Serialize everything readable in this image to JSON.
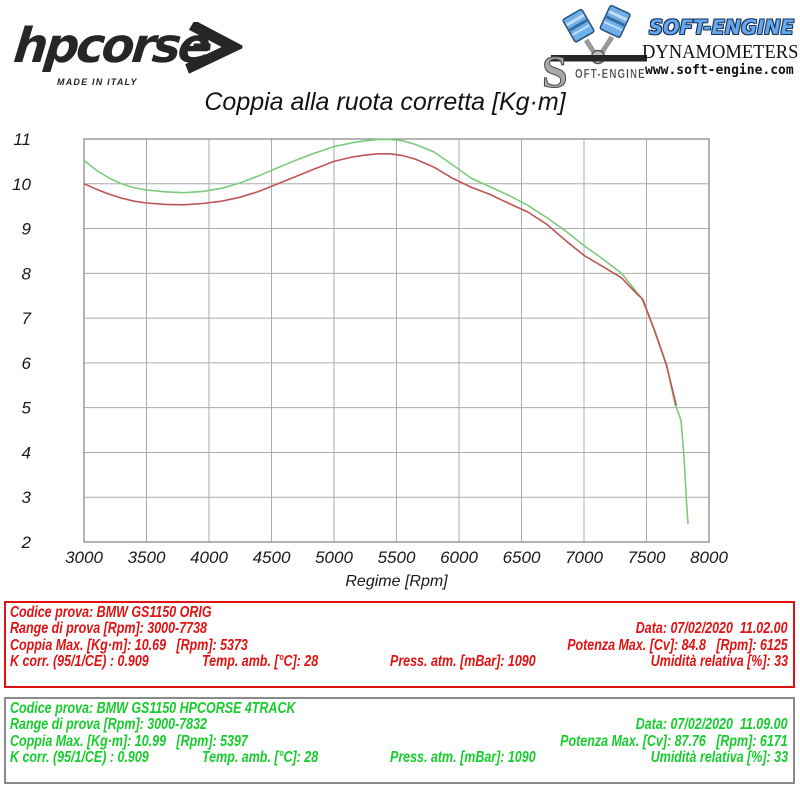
{
  "branding": {
    "hpcorse": {
      "wordmark": "hpcorse",
      "tagline": "MADE IN ITALY"
    },
    "softengine": {
      "name": "SOFT-ENGINE",
      "subtitle": "DYNAMOMETERS",
      "website": "www.soft-engine.com",
      "logo_s_text": "OFT-ENGINE",
      "blue": "#5aa2e8"
    }
  },
  "chart_data": {
    "type": "line",
    "title": "Coppia alla ruota corretta [Kg·m]",
    "xlabel": "Regime [Rpm]",
    "xlim": [
      3000,
      8000
    ],
    "ylim": [
      2,
      11
    ],
    "xticks": [
      3000,
      3500,
      4000,
      4500,
      5000,
      5500,
      6000,
      6500,
      7000,
      7500,
      8000
    ],
    "yticks": [
      2,
      3,
      4,
      5,
      6,
      7,
      8,
      9,
      10,
      11
    ],
    "grid": true,
    "grid_color": "#ababab",
    "frame_color": "#8c8c8c",
    "legend_position": "none",
    "series": [
      {
        "name": "BMW GS1150 ORIG",
        "color": "#bf5454",
        "points": [
          [
            3000,
            10.0
          ],
          [
            3100,
            9.88
          ],
          [
            3200,
            9.77
          ],
          [
            3300,
            9.68
          ],
          [
            3400,
            9.61
          ],
          [
            3500,
            9.57
          ],
          [
            3650,
            9.54
          ],
          [
            3800,
            9.53
          ],
          [
            3950,
            9.56
          ],
          [
            4100,
            9.61
          ],
          [
            4250,
            9.7
          ],
          [
            4400,
            9.83
          ],
          [
            4550,
            10.0
          ],
          [
            4700,
            10.17
          ],
          [
            4850,
            10.34
          ],
          [
            5000,
            10.5
          ],
          [
            5150,
            10.6
          ],
          [
            5250,
            10.64
          ],
          [
            5350,
            10.67
          ],
          [
            5450,
            10.67
          ],
          [
            5550,
            10.63
          ],
          [
            5650,
            10.55
          ],
          [
            5800,
            10.37
          ],
          [
            5950,
            10.12
          ],
          [
            6100,
            9.92
          ],
          [
            6250,
            9.76
          ],
          [
            6400,
            9.56
          ],
          [
            6550,
            9.37
          ],
          [
            6700,
            9.1
          ],
          [
            6850,
            8.74
          ],
          [
            7000,
            8.4
          ],
          [
            7150,
            8.15
          ],
          [
            7300,
            7.9
          ],
          [
            7430,
            7.52
          ],
          [
            7470,
            7.42
          ],
          [
            7560,
            6.75
          ],
          [
            7660,
            5.95
          ],
          [
            7738,
            5.05
          ]
        ]
      },
      {
        "name": "BMW GS1150 HPCORSE 4TRACK",
        "color": "#7dca7d",
        "points": [
          [
            3000,
            10.52
          ],
          [
            3100,
            10.3
          ],
          [
            3200,
            10.13
          ],
          [
            3300,
            10.0
          ],
          [
            3400,
            9.91
          ],
          [
            3500,
            9.86
          ],
          [
            3650,
            9.82
          ],
          [
            3800,
            9.8
          ],
          [
            3950,
            9.83
          ],
          [
            4100,
            9.9
          ],
          [
            4250,
            10.02
          ],
          [
            4400,
            10.18
          ],
          [
            4550,
            10.36
          ],
          [
            4700,
            10.53
          ],
          [
            4850,
            10.69
          ],
          [
            5000,
            10.83
          ],
          [
            5150,
            10.92
          ],
          [
            5250,
            10.96
          ],
          [
            5350,
            10.99
          ],
          [
            5450,
            10.99
          ],
          [
            5550,
            10.96
          ],
          [
            5650,
            10.88
          ],
          [
            5800,
            10.71
          ],
          [
            5950,
            10.42
          ],
          [
            6100,
            10.12
          ],
          [
            6250,
            9.93
          ],
          [
            6400,
            9.74
          ],
          [
            6550,
            9.52
          ],
          [
            6700,
            9.25
          ],
          [
            6850,
            8.95
          ],
          [
            7000,
            8.62
          ],
          [
            7150,
            8.32
          ],
          [
            7300,
            8.0
          ],
          [
            7460,
            7.45
          ],
          [
            7560,
            6.77
          ],
          [
            7660,
            5.96
          ],
          [
            7728,
            5.08
          ],
          [
            7776,
            4.72
          ],
          [
            7800,
            3.9
          ],
          [
            7820,
            2.9
          ],
          [
            7832,
            2.4
          ]
        ]
      }
    ]
  },
  "info_boxes": [
    {
      "text_color": "#e01212",
      "border_color": "#e01212",
      "codice": "Codice prova: BMW GS1150 ORIG",
      "range": "Range di prova [Rpm]: 3000-7738",
      "data": "Data: 07/02/2020  11.02.00",
      "coppia": "Coppia Max. [Kg·m]: 10.69   [Rpm]: 5373",
      "potenza": "Potenza Max. [Cv]: 84.8   [Rpm]: 6125",
      "k_corr": "K corr. (95/1/CE) : 0.909",
      "temp": "Temp. amb. [°C]: 28",
      "press": "Press. atm. [mBar]: 1090",
      "umidita": "Umidità relativa [%]: 33"
    },
    {
      "text_color": "#16cd2c",
      "border_color": "#8a8a8a",
      "codice": "Codice prova: BMW GS1150 HPCORSE 4TRACK",
      "range": "Range di prova [Rpm]: 3000-7832",
      "data": "Data: 07/02/2020  11.09.00",
      "coppia": "Coppia Max. [Kg·m]: 10.99   [Rpm]: 5397",
      "potenza": "Potenza Max. [Cv]: 87.76   [Rpm]: 6171",
      "k_corr": "K corr. (95/1/CE) : 0.909",
      "temp": "Temp. amb. [°C]: 28",
      "press": "Press. atm. [mBar]: 1090",
      "umidita": "Umidità relativa [%]: 33"
    }
  ]
}
